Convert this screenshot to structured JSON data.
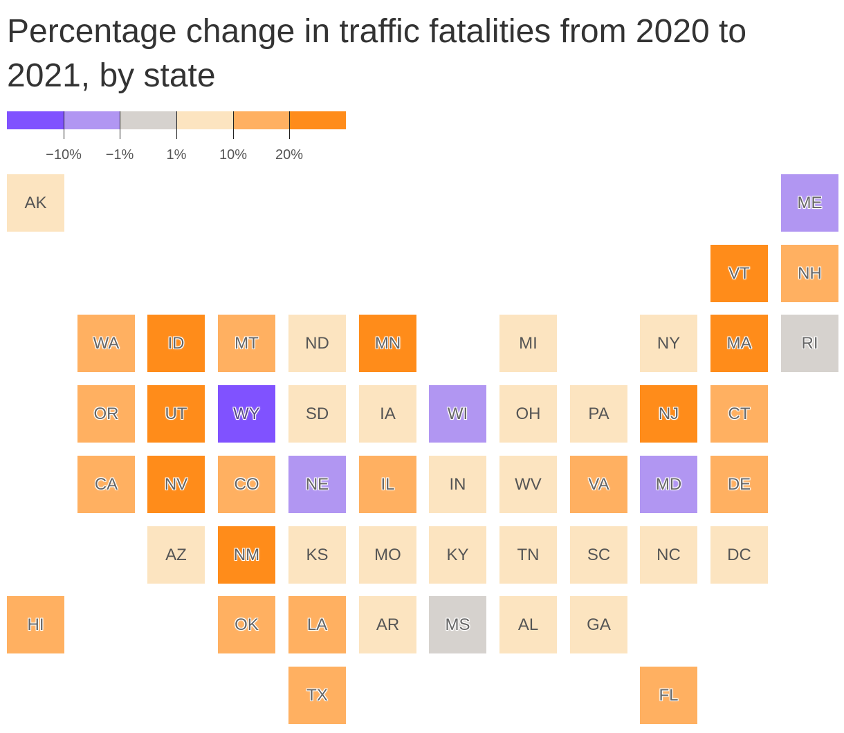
{
  "title": "Percentage change in traffic fatalities from 2020 to 2021, by state",
  "legend": {
    "colors": [
      "#8052ff",
      "#b196f2",
      "#d6d2ce",
      "#fce4c0",
      "#ffb061",
      "#ff8c1a"
    ],
    "tick_labels": [
      "−10%",
      "−1%",
      "1%",
      "10%",
      "20%"
    ]
  },
  "chart_data": {
    "type": "heatmap",
    "title": "Percentage change in traffic fatalities from 2020 to 2021, by state",
    "bins": [
      "below −10%",
      "−10% to −1%",
      "−1% to 1%",
      "1% to 10%",
      "10% to 20%",
      "above 20%"
    ],
    "states": [
      {
        "abbr": "AK",
        "bin": 3,
        "col": 0,
        "row": 0
      },
      {
        "abbr": "ME",
        "bin": 1,
        "col": 11,
        "row": 0
      },
      {
        "abbr": "VT",
        "bin": 5,
        "col": 10,
        "row": 1
      },
      {
        "abbr": "NH",
        "bin": 4,
        "col": 11,
        "row": 1
      },
      {
        "abbr": "WA",
        "bin": 4,
        "col": 1,
        "row": 2
      },
      {
        "abbr": "ID",
        "bin": 5,
        "col": 2,
        "row": 2
      },
      {
        "abbr": "MT",
        "bin": 4,
        "col": 3,
        "row": 2
      },
      {
        "abbr": "ND",
        "bin": 3,
        "col": 4,
        "row": 2
      },
      {
        "abbr": "MN",
        "bin": 5,
        "col": 5,
        "row": 2
      },
      {
        "abbr": "MI",
        "bin": 3,
        "col": 7,
        "row": 2
      },
      {
        "abbr": "NY",
        "bin": 3,
        "col": 9,
        "row": 2
      },
      {
        "abbr": "MA",
        "bin": 5,
        "col": 10,
        "row": 2
      },
      {
        "abbr": "RI",
        "bin": 2,
        "col": 11,
        "row": 2
      },
      {
        "abbr": "OR",
        "bin": 4,
        "col": 1,
        "row": 3
      },
      {
        "abbr": "UT",
        "bin": 5,
        "col": 2,
        "row": 3
      },
      {
        "abbr": "WY",
        "bin": 0,
        "col": 3,
        "row": 3
      },
      {
        "abbr": "SD",
        "bin": 3,
        "col": 4,
        "row": 3
      },
      {
        "abbr": "IA",
        "bin": 3,
        "col": 5,
        "row": 3
      },
      {
        "abbr": "WI",
        "bin": 1,
        "col": 6,
        "row": 3
      },
      {
        "abbr": "OH",
        "bin": 3,
        "col": 7,
        "row": 3
      },
      {
        "abbr": "PA",
        "bin": 3,
        "col": 8,
        "row": 3
      },
      {
        "abbr": "NJ",
        "bin": 5,
        "col": 9,
        "row": 3
      },
      {
        "abbr": "CT",
        "bin": 4,
        "col": 10,
        "row": 3
      },
      {
        "abbr": "CA",
        "bin": 4,
        "col": 1,
        "row": 4
      },
      {
        "abbr": "NV",
        "bin": 5,
        "col": 2,
        "row": 4
      },
      {
        "abbr": "CO",
        "bin": 4,
        "col": 3,
        "row": 4
      },
      {
        "abbr": "NE",
        "bin": 1,
        "col": 4,
        "row": 4
      },
      {
        "abbr": "IL",
        "bin": 4,
        "col": 5,
        "row": 4
      },
      {
        "abbr": "IN",
        "bin": 3,
        "col": 6,
        "row": 4
      },
      {
        "abbr": "WV",
        "bin": 3,
        "col": 7,
        "row": 4
      },
      {
        "abbr": "VA",
        "bin": 4,
        "col": 8,
        "row": 4
      },
      {
        "abbr": "MD",
        "bin": 1,
        "col": 9,
        "row": 4
      },
      {
        "abbr": "DE",
        "bin": 4,
        "col": 10,
        "row": 4
      },
      {
        "abbr": "AZ",
        "bin": 3,
        "col": 2,
        "row": 5
      },
      {
        "abbr": "NM",
        "bin": 5,
        "col": 3,
        "row": 5
      },
      {
        "abbr": "KS",
        "bin": 3,
        "col": 4,
        "row": 5
      },
      {
        "abbr": "MO",
        "bin": 3,
        "col": 5,
        "row": 5
      },
      {
        "abbr": "KY",
        "bin": 3,
        "col": 6,
        "row": 5
      },
      {
        "abbr": "TN",
        "bin": 3,
        "col": 7,
        "row": 5
      },
      {
        "abbr": "SC",
        "bin": 3,
        "col": 8,
        "row": 5
      },
      {
        "abbr": "NC",
        "bin": 3,
        "col": 9,
        "row": 5
      },
      {
        "abbr": "DC",
        "bin": 3,
        "col": 10,
        "row": 5
      },
      {
        "abbr": "HI",
        "bin": 4,
        "col": 0,
        "row": 6
      },
      {
        "abbr": "OK",
        "bin": 4,
        "col": 3,
        "row": 6
      },
      {
        "abbr": "LA",
        "bin": 4,
        "col": 4,
        "row": 6
      },
      {
        "abbr": "AR",
        "bin": 3,
        "col": 5,
        "row": 6
      },
      {
        "abbr": "MS",
        "bin": 2,
        "col": 6,
        "row": 6
      },
      {
        "abbr": "AL",
        "bin": 3,
        "col": 7,
        "row": 6
      },
      {
        "abbr": "GA",
        "bin": 3,
        "col": 8,
        "row": 6
      },
      {
        "abbr": "TX",
        "bin": 4,
        "col": 4,
        "row": 7
      },
      {
        "abbr": "FL",
        "bin": 4,
        "col": 9,
        "row": 7
      }
    ]
  }
}
